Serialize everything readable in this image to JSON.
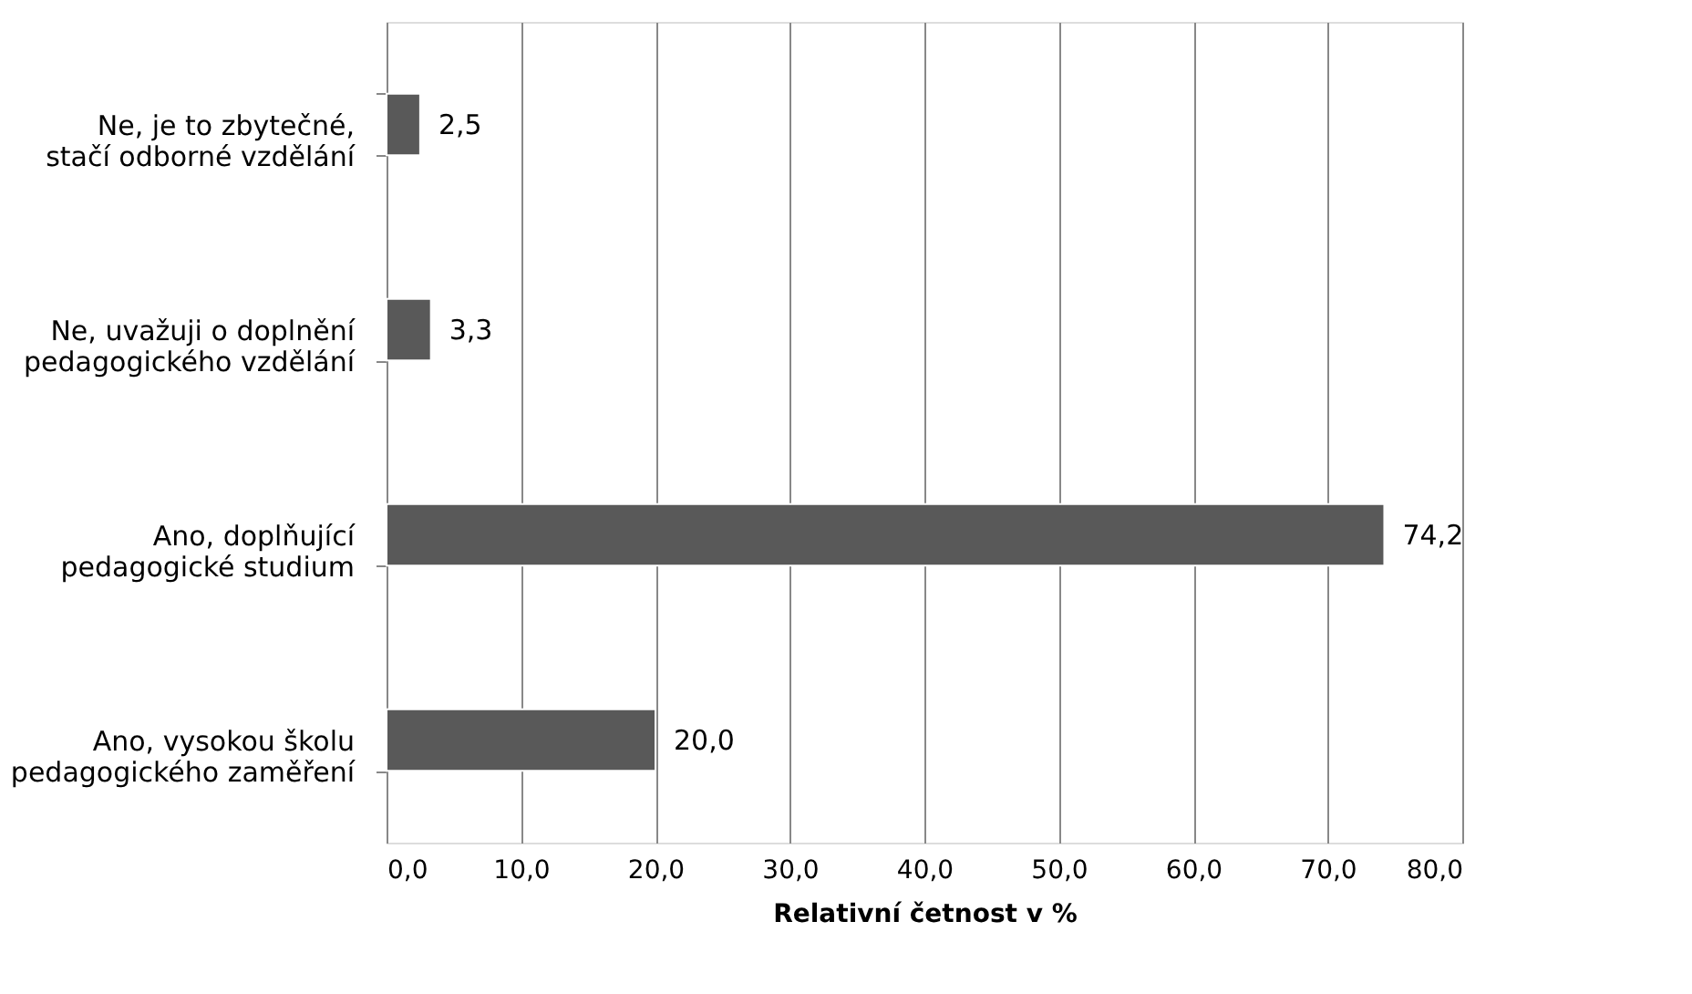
{
  "chart_data": {
    "type": "bar",
    "orientation": "horizontal",
    "categories": [
      "Ne, je to zbytečné, stačí odborné vzdělání",
      "Ne, uvažuji o doplnění pedagogického vzdělání",
      "Ano, doplňující pedagogické studium",
      "Ano, vysokou školu pedagogického zaměření"
    ],
    "values": [
      2.5,
      3.3,
      74.2,
      20.0
    ],
    "value_labels": [
      "2,5",
      "3,3",
      "74,2",
      "20,0"
    ],
    "color": "#595959",
    "xlabel": "Relativní četnost v %",
    "xlim": [
      0,
      80
    ],
    "xticks": [
      {
        "value": 0,
        "label": "0,0"
      },
      {
        "value": 10,
        "label": "10,0"
      },
      {
        "value": 20,
        "label": "20,0"
      },
      {
        "value": 30,
        "label": "30,0"
      },
      {
        "value": 40,
        "label": "40,0"
      },
      {
        "value": 50,
        "label": "50,0"
      },
      {
        "value": 60,
        "label": "60,0"
      },
      {
        "value": 70,
        "label": "70,0"
      },
      {
        "value": 80,
        "label": "80,0"
      }
    ],
    "grid": "x"
  }
}
